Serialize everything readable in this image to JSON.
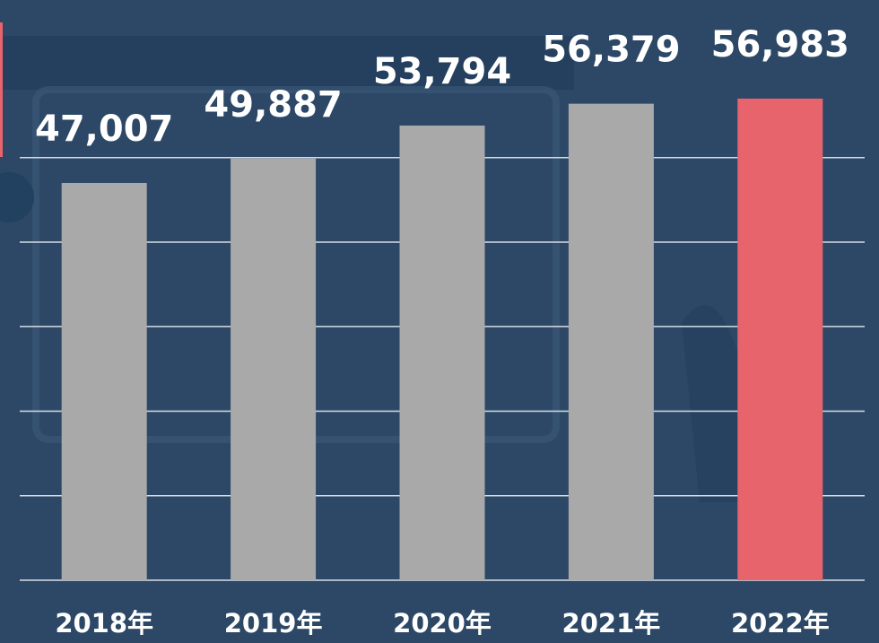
{
  "chart_data": {
    "type": "bar",
    "categories": [
      "2018年",
      "2019年",
      "2020年",
      "2021年",
      "2022年"
    ],
    "values": [
      47007,
      49887,
      53794,
      56379,
      56983
    ],
    "value_labels": [
      "47,007",
      "49,887",
      "53,794",
      "56,379",
      "56,983"
    ],
    "colors": [
      "#a9a9a9",
      "#a9a9a9",
      "#a9a9a9",
      "#a9a9a9",
      "#e8646d"
    ],
    "ylim": [
      0,
      68650
    ],
    "yticks": [
      0,
      10000,
      20000,
      30000,
      40000,
      50000
    ],
    "grid": true
  }
}
